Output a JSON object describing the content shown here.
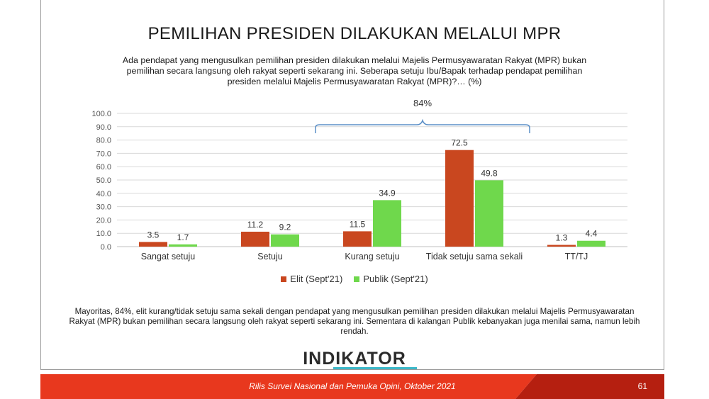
{
  "title": "PEMILIHAN PRESIDEN DILAKUKAN MELALUI MPR",
  "subtitle": "Ada pendapat yang mengusulkan pemilihan presiden dilakukan melalui Majelis Permusyawaratan Rakyat (MPR) bukan pemilihan secara langsung oleh rakyat seperti sekarang ini. Seberapa setuju Ibu/Bapak terhadap pendapat pemilihan presiden melalui Majelis Permusyawaratan Rakyat (MPR)?… (%)",
  "note": "Mayoritas, 84%, elit kurang/tidak setuju sama sekali dengan pendapat yang mengusulkan pemilihan presiden dilakukan melalui Majelis Permusyawaratan Rakyat (MPR) bukan pemilihan secara langsung oleh rakyat seperti sekarang ini. Sementara di kalangan Publik kebanyakan juga menilai sama, namun lebih rendah.",
  "logo": "INDIKATOR",
  "footer": {
    "text": "Rilis Survei Nasional dan Pemuka Opini, Oktober 2021",
    "page": "61"
  },
  "colors": {
    "elit": "#c9471f",
    "publik": "#6fd84c",
    "footer_red": "#e8381e",
    "footer_dark": "#b51f10",
    "brace": "#5b8fc7",
    "grid": "#d9d9d9"
  },
  "chart_data": {
    "type": "bar",
    "categories": [
      "Sangat setuju",
      "Setuju",
      "Kurang setuju",
      "Tidak setuju sama sekali",
      "TT/TJ"
    ],
    "series": [
      {
        "name": "Elit (Sept'21)",
        "values": [
          3.5,
          11.2,
          11.5,
          72.5,
          1.3
        ]
      },
      {
        "name": "Publik (Sept'21)",
        "values": [
          1.7,
          9.2,
          34.9,
          49.8,
          4.4
        ]
      }
    ],
    "yticks": [
      "0.0",
      "10.0",
      "20.0",
      "30.0",
      "40.0",
      "50.0",
      "60.0",
      "70.0",
      "80.0",
      "90.0",
      "100.0"
    ],
    "ylim": [
      0,
      100
    ],
    "grid": true,
    "legend_position": "bottom",
    "annotation": {
      "text": "84%",
      "spans_categories": [
        "Kurang setuju",
        "Tidak setuju sama sekali"
      ]
    }
  }
}
